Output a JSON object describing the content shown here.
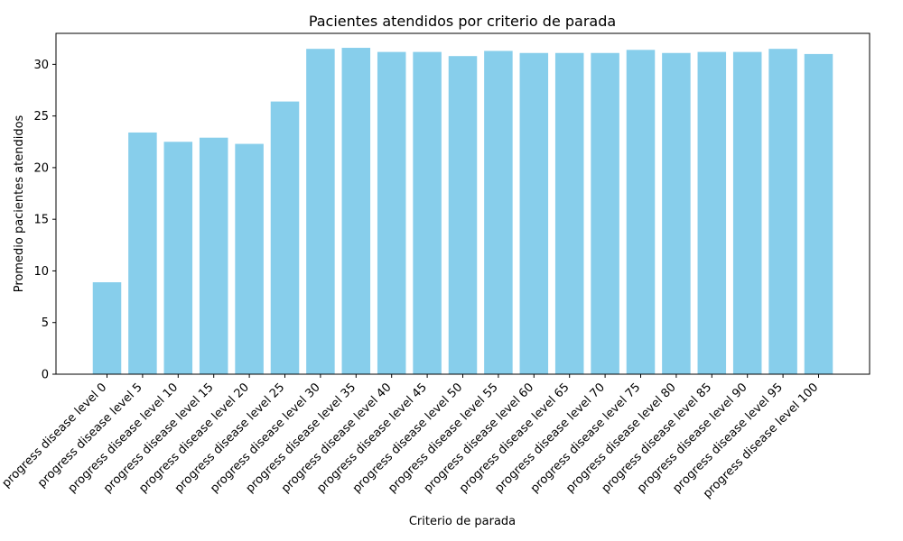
{
  "chart_data": {
    "type": "bar",
    "title": "Pacientes atendidos por criterio de parada",
    "xlabel": "Criterio de parada",
    "ylabel": "Promedio pacientes atendidos",
    "ylim": [
      0,
      33
    ],
    "yticks": [
      0,
      5,
      10,
      15,
      20,
      25,
      30
    ],
    "grid": false,
    "bar_color": "#87CEEB",
    "categories": [
      "progress disease level 0",
      "progress disease level 5",
      "progress disease level 10",
      "progress disease level 15",
      "progress disease level 20",
      "progress disease level 25",
      "progress disease level 30",
      "progress disease level 35",
      "progress disease level 40",
      "progress disease level 45",
      "progress disease level 50",
      "progress disease level 55",
      "progress disease level 60",
      "progress disease level 65",
      "progress disease level 70",
      "progress disease level 75",
      "progress disease level 80",
      "progress disease level 85",
      "progress disease level 90",
      "progress disease level 95",
      "progress disease level 100"
    ],
    "values": [
      8.9,
      23.4,
      22.5,
      22.9,
      22.3,
      26.4,
      31.5,
      31.6,
      31.2,
      31.2,
      30.8,
      31.3,
      31.1,
      31.1,
      31.1,
      31.4,
      31.1,
      31.2,
      31.2,
      31.5,
      31.0
    ]
  }
}
